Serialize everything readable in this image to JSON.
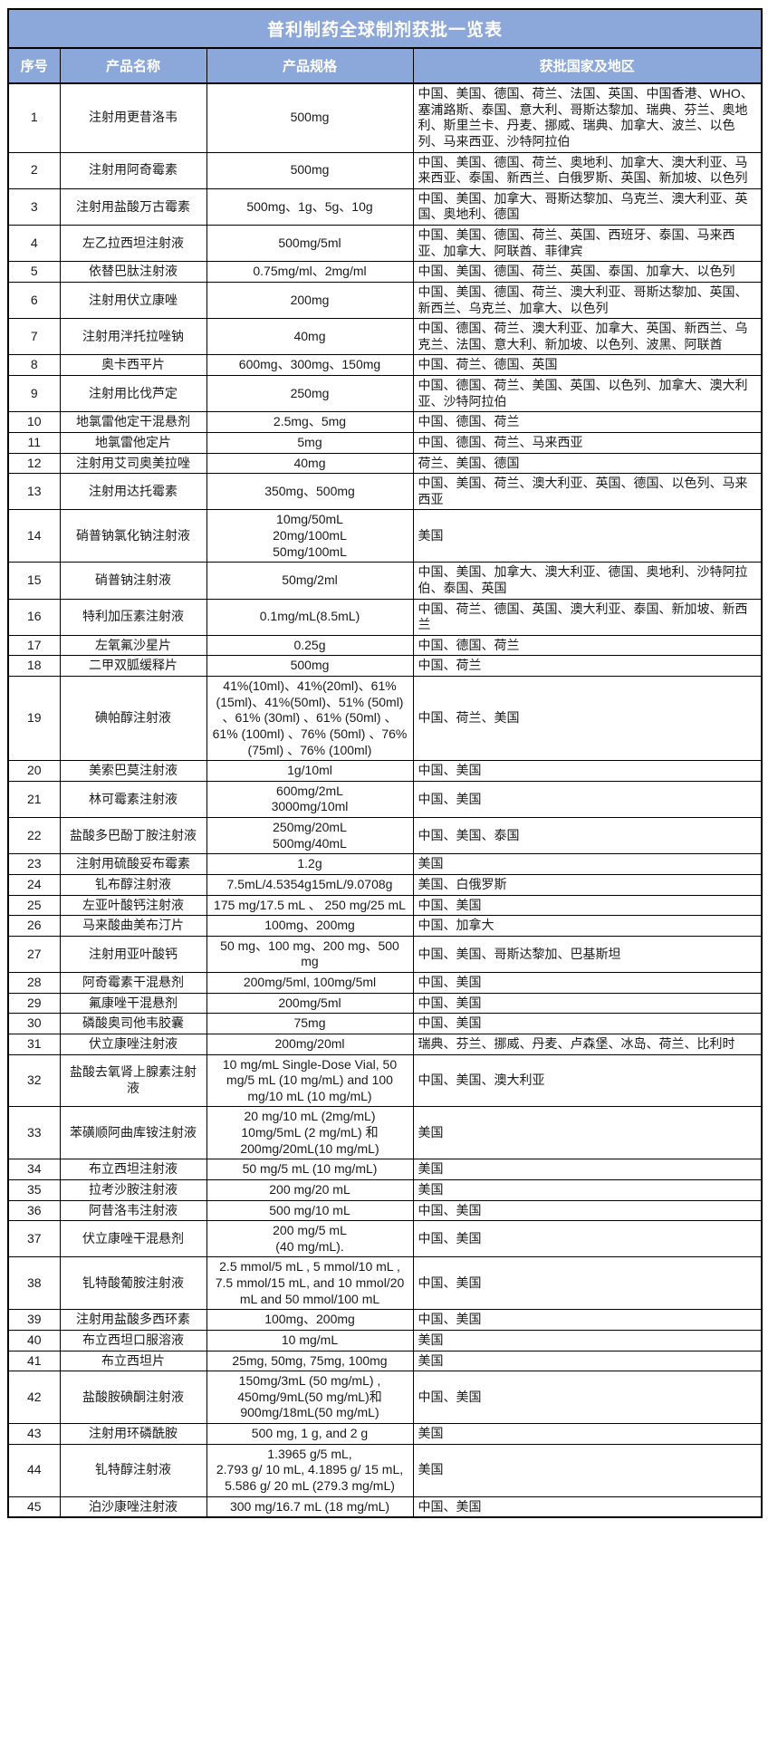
{
  "colors": {
    "header_bg": "#8CA7DA",
    "header_text": "#FFFFFF",
    "border": "#000000",
    "body_text": "#1A1A1A"
  },
  "table": {
    "title": "普利制药全球制剂获批一览表",
    "columns": [
      "序号",
      "产品名称",
      "产品规格",
      "获批国家及地区"
    ],
    "rows": [
      {
        "no": "1",
        "name": "注射用更昔洛韦",
        "spec": "500mg",
        "regions": "中国、美国、德国、荷兰、法国、英国、中国香港、WHO、塞浦路斯、泰国、意大利、哥斯达黎加、瑞典、芬兰、奥地利、斯里兰卡、丹麦、挪威、瑞典、加拿大、波兰、以色列、马来西亚、沙特阿拉伯"
      },
      {
        "no": "2",
        "name": "注射用阿奇霉素",
        "spec": "500mg",
        "regions": "中国、美国、德国、荷兰、奥地利、加拿大、澳大利亚、马来西亚、泰国、新西兰、白俄罗斯、英国、新加坡、以色列"
      },
      {
        "no": "3",
        "name": "注射用盐酸万古霉素",
        "spec": "500mg、1g、5g、10g",
        "regions": "中国、美国、加拿大、哥斯达黎加、乌克兰、澳大利亚、英国、奥地利、德国"
      },
      {
        "no": "4",
        "name": "左乙拉西坦注射液",
        "spec": "500mg/5ml",
        "regions": "中国、美国、德国、荷兰、英国、西班牙、泰国、马来西亚、加拿大、阿联酋、菲律宾"
      },
      {
        "no": "5",
        "name": "依替巴肽注射液",
        "spec": "0.75mg/ml、2mg/ml",
        "regions": "中国、美国、德国、荷兰、英国、泰国、加拿大、以色列"
      },
      {
        "no": "6",
        "name": "注射用伏立康唑",
        "spec": "200mg",
        "regions": "中国、美国、德国、荷兰、澳大利亚、哥斯达黎加、英国、新西兰、乌克兰、加拿大、以色列"
      },
      {
        "no": "7",
        "name": "注射用泮托拉唑钠",
        "spec": "40mg",
        "regions": "中国、德国、荷兰、澳大利亚、加拿大、英国、新西兰、乌克兰、法国、意大利、新加坡、以色列、波黑、阿联酋"
      },
      {
        "no": "8",
        "name": "奥卡西平片",
        "spec": "600mg、300mg、150mg",
        "regions": "中国、荷兰、德国、英国"
      },
      {
        "no": "9",
        "name": "注射用比伐芦定",
        "spec": "250mg",
        "regions": "中国、德国、荷兰、美国、英国、以色列、加拿大、澳大利亚、沙特阿拉伯"
      },
      {
        "no": "10",
        "name": "地氯雷他定干混悬剂",
        "spec": "2.5mg、5mg",
        "regions": "中国、德国、荷兰"
      },
      {
        "no": "11",
        "name": "地氯雷他定片",
        "spec": "5mg",
        "regions": "中国、德国、荷兰、马来西亚"
      },
      {
        "no": "12",
        "name": "注射用艾司奥美拉唑",
        "spec": "40mg",
        "regions": "荷兰、美国、德国"
      },
      {
        "no": "13",
        "name": "注射用达托霉素",
        "spec": "350mg、500mg",
        "regions": "中国、美国、荷兰、澳大利亚、英国、德国、以色列、马来西亚"
      },
      {
        "no": "14",
        "name": "硝普钠氯化钠注射液",
        "spec": "10mg/50mL\n20mg/100mL\n50mg/100mL",
        "regions": "美国"
      },
      {
        "no": "15",
        "name": "硝普钠注射液",
        "spec": "50mg/2ml",
        "regions": "中国、美国、加拿大、澳大利亚、德国、奥地利、沙特阿拉伯、泰国、英国"
      },
      {
        "no": "16",
        "name": "特利加压素注射液",
        "spec": "0.1mg/mL(8.5mL)",
        "regions": "中国、荷兰、德国、英国、澳大利亚、泰国、新加坡、新西兰"
      },
      {
        "no": "17",
        "name": "左氧氟沙星片",
        "spec": "0.25g",
        "regions": "中国、德国、荷兰"
      },
      {
        "no": "18",
        "name": "二甲双胍缓释片",
        "spec": "500mg",
        "regions": "中国、荷兰"
      },
      {
        "no": "19",
        "name": "碘帕醇注射液",
        "spec": "41%(10ml)、41%(20ml)、61%(15ml)、41%(50ml)、51% (50ml) 、61% (30ml) 、61% (50ml) 、61% (100ml) 、76% (50ml) 、76% (75ml) 、76% (100ml)",
        "regions": "中国、荷兰、美国"
      },
      {
        "no": "20",
        "name": "美索巴莫注射液",
        "spec": "1g/10ml",
        "regions": "中国、美国"
      },
      {
        "no": "21",
        "name": "林可霉素注射液",
        "spec": "600mg/2mL\n3000mg/10ml",
        "regions": "中国、美国"
      },
      {
        "no": "22",
        "name": "盐酸多巴酚丁胺注射液",
        "spec": "250mg/20mL\n500mg/40mL",
        "regions": "中国、美国、泰国"
      },
      {
        "no": "23",
        "name": "注射用硫酸妥布霉素",
        "spec": "1.2g",
        "regions": "美国"
      },
      {
        "no": "24",
        "name": "钆布醇注射液",
        "spec": "7.5mL/4.5354g15mL/9.0708g",
        "regions": "美国、白俄罗斯"
      },
      {
        "no": "25",
        "name": "左亚叶酸钙注射液",
        "spec": "175 mg/17.5 mL 、 250 mg/25 mL",
        "regions": "中国、美国"
      },
      {
        "no": "26",
        "name": "马来酸曲美布汀片",
        "spec": "100mg、200mg",
        "regions": "中国、加拿大"
      },
      {
        "no": "27",
        "name": "注射用亚叶酸钙",
        "spec": "50 mg、100 mg、200 mg、500 mg",
        "regions": "中国、美国、哥斯达黎加、巴基斯坦"
      },
      {
        "no": "28",
        "name": "阿奇霉素干混悬剂",
        "spec": "200mg/5ml, 100mg/5ml",
        "regions": "中国、美国"
      },
      {
        "no": "29",
        "name": "氟康唑干混悬剂",
        "spec": "200mg/5ml",
        "regions": "中国、美国"
      },
      {
        "no": "30",
        "name": "磷酸奥司他韦胶囊",
        "spec": "75mg",
        "regions": "中国、美国"
      },
      {
        "no": "31",
        "name": "伏立康唑注射液",
        "spec": "200mg/20ml",
        "regions": "瑞典、芬兰、挪威、丹麦、卢森堡、冰岛、荷兰、比利时"
      },
      {
        "no": "32",
        "name": "盐酸去氧肾上腺素注射液",
        "spec": "10 mg/mL Single-Dose Vial, 50 mg/5 mL (10 mg/mL) and 100 mg/10 mL (10 mg/mL)",
        "regions": "中国、美国、澳大利亚"
      },
      {
        "no": "33",
        "name": "苯磺顺阿曲库铵注射液",
        "spec": "20 mg/10 mL (2mg/mL)\n10mg/5mL (2 mg/mL) 和\n200mg/20mL(10 mg/mL)",
        "regions": "美国"
      },
      {
        "no": "34",
        "name": "布立西坦注射液",
        "spec": "50 mg/5 mL (10 mg/mL)",
        "regions": "美国"
      },
      {
        "no": "35",
        "name": "拉考沙胺注射液",
        "spec": "200 mg/20 mL",
        "regions": "美国"
      },
      {
        "no": "36",
        "name": "阿昔洛韦注射液",
        "spec": "500 mg/10 mL",
        "regions": "中国、美国"
      },
      {
        "no": "37",
        "name": "伏立康唑干混悬剂",
        "spec": "200 mg/5 mL\n(40 mg/mL).",
        "regions": "中国、美国"
      },
      {
        "no": "38",
        "name": "钆特酸葡胺注射液",
        "spec": "2.5 mmol/5 mL , 5 mmol/10 mL , 7.5 mmol/15 mL, and 10 mmol/20 mL and 50 mmol/100 mL",
        "regions": "中国、美国"
      },
      {
        "no": "39",
        "name": "注射用盐酸多西环素",
        "spec": "100mg、200mg",
        "regions": "中国、美国"
      },
      {
        "no": "40",
        "name": "布立西坦口服溶液",
        "spec": "10 mg/mL",
        "regions": "美国"
      },
      {
        "no": "41",
        "name": "布立西坦片",
        "spec": "25mg, 50mg, 75mg, 100mg",
        "regions": "美国"
      },
      {
        "no": "42",
        "name": "盐酸胺碘酮注射液",
        "spec": "150mg/3mL (50 mg/mL) ,\n450mg/9mL(50 mg/mL)和\n900mg/18mL(50 mg/mL)",
        "regions": "中国、美国"
      },
      {
        "no": "43",
        "name": "注射用环磷酰胺",
        "spec": "500 mg, 1 g, and 2 g",
        "regions": "美国"
      },
      {
        "no": "44",
        "name": "钆特醇注射液",
        "spec": "1.3965 g/5 mL,\n2.793 g/ 10 mL, 4.1895 g/ 15 mL,\n5.586 g/ 20 mL (279.3 mg/mL)",
        "regions": "美国"
      },
      {
        "no": "45",
        "name": "泊沙康唑注射液",
        "spec": "300 mg/16.7 mL (18 mg/mL)",
        "regions": "中国、美国"
      }
    ]
  }
}
